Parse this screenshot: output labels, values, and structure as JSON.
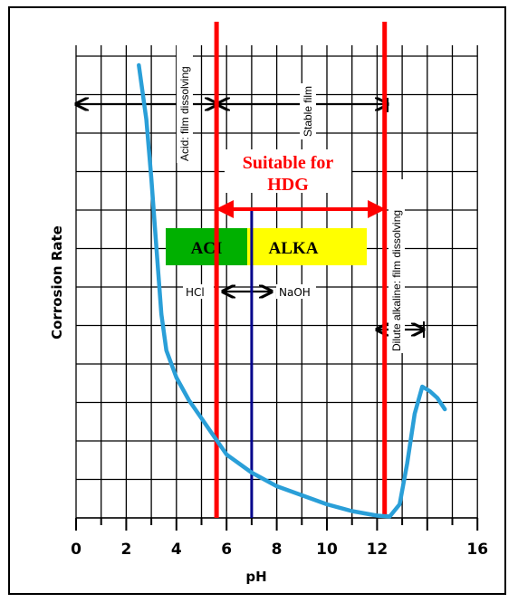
{
  "chart_data": {
    "type": "line",
    "xlabel": "pH",
    "ylabel": "Corrosion Rate",
    "xlim": [
      0,
      16
    ],
    "x_ticks": [
      "0",
      "2",
      "4",
      "6",
      "8",
      "10",
      "12",
      "16"
    ],
    "grid": true,
    "series": [
      {
        "color": "#2a9fd8",
        "points": [
          [
            2.5,
            100
          ],
          [
            2.8,
            88
          ],
          [
            3.0,
            75
          ],
          [
            3.2,
            60
          ],
          [
            3.4,
            45
          ],
          [
            3.6,
            37
          ],
          [
            4.0,
            31
          ],
          [
            4.5,
            26
          ],
          [
            5.0,
            22
          ],
          [
            5.5,
            18
          ],
          [
            6.0,
            14
          ],
          [
            7.0,
            10
          ],
          [
            8.0,
            7
          ],
          [
            9.0,
            5
          ],
          [
            10.0,
            3
          ],
          [
            11.0,
            1.5
          ],
          [
            12.0,
            0.5
          ],
          [
            12.5,
            0.3
          ],
          [
            12.9,
            3
          ],
          [
            13.2,
            12
          ],
          [
            13.5,
            23
          ],
          [
            13.8,
            29
          ],
          [
            14.1,
            28
          ],
          [
            14.4,
            26.5
          ],
          [
            14.7,
            24
          ]
        ]
      }
    ],
    "zones": [
      {
        "label": "Acid: film dissolving"
      },
      {
        "label": "Stable film"
      },
      {
        "label": "Dilute alkaline: film dissolving"
      }
    ],
    "annotations": {
      "suitable_line1": "Suitable for",
      "suitable_line2": "HDG",
      "acid_box": "ACI",
      "alkali_box": "ALKA",
      "hcl": "HCl",
      "naoh": "NaOH"
    },
    "reference_lines": {
      "red_at_ph": [
        5.6,
        12.3
      ],
      "blue_at_ph": 7,
      "suitable_range": [
        5.6,
        12.3
      ]
    },
    "colors": {
      "curve": "#2a9fd8",
      "boundary": "#ff0000",
      "neutral": "#00008b",
      "acid_box": "#00b000",
      "alkali_box": "#ffff00"
    }
  }
}
